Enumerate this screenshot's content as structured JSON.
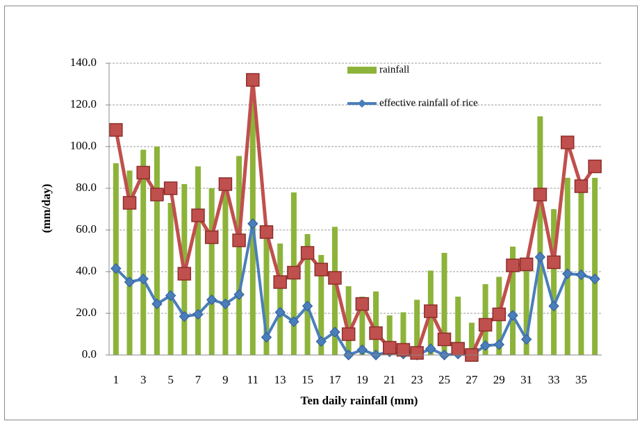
{
  "chart_data": {
    "type": "bar",
    "x_label": "Ten daily rainfall (mm)",
    "y_label": "(mm/day)",
    "categories": [
      1,
      null,
      3,
      null,
      5,
      null,
      7,
      null,
      9,
      null,
      11,
      null,
      13,
      null,
      15,
      null,
      17,
      null,
      19,
      null,
      21,
      null,
      23,
      null,
      25,
      null,
      27,
      null,
      29,
      null,
      31,
      null,
      33,
      null,
      35,
      null
    ],
    "ylim": [
      0,
      140
    ],
    "yticks": [
      {
        "value": 0,
        "label": "0.0"
      },
      {
        "value": 20,
        "label": "20.0"
      },
      {
        "value": 40,
        "label": "40.0"
      },
      {
        "value": 60,
        "label": "60.0"
      },
      {
        "value": 80,
        "label": "80.0"
      },
      {
        "value": 100,
        "label": "100.0"
      },
      {
        "value": 120,
        "label": "120.0"
      },
      {
        "value": 140,
        "label": "140.0"
      }
    ],
    "grid": true,
    "legend": "top",
    "series": [
      {
        "name": "rainfall",
        "type": "bar",
        "color": "#8db33a",
        "values": [
          92,
          88.5,
          98.5,
          100,
          73,
          82,
          90.5,
          80,
          81,
          95.5,
          125,
          57,
          53.5,
          78,
          58,
          48,
          61.5,
          33,
          28,
          30.5,
          19,
          20.5,
          26.5,
          40.5,
          49,
          28,
          15.5,
          34,
          37.5,
          52,
          42,
          114.5,
          70,
          85,
          83,
          85
        ]
      },
      {
        "name": "effective rainfall of rice",
        "type": "line",
        "marker": "diamond",
        "color": "#4a7ebb",
        "values": [
          41.5,
          35,
          36.5,
          24.5,
          28.5,
          18.5,
          19.5,
          26.5,
          24.5,
          29,
          63,
          8.5,
          20.5,
          16,
          23.5,
          6.5,
          11,
          0,
          2.5,
          0,
          1.5,
          0.5,
          0,
          3,
          0,
          0.5,
          0,
          4.5,
          5,
          19,
          7.5,
          47,
          23.5,
          39,
          38.5,
          36.5
        ]
      },
      {
        "type": "line",
        "marker": "square",
        "color": "#c0504d",
        "values": [
          108,
          73,
          87.5,
          77,
          80,
          39,
          67,
          56.5,
          82,
          55,
          132,
          59,
          35,
          39.5,
          49,
          41,
          37,
          10,
          24.5,
          10.5,
          3.5,
          2.5,
          1,
          21,
          7.5,
          3,
          0,
          14.5,
          19.5,
          43,
          43.5,
          77,
          44.5,
          102,
          81,
          90.5
        ]
      }
    ]
  }
}
